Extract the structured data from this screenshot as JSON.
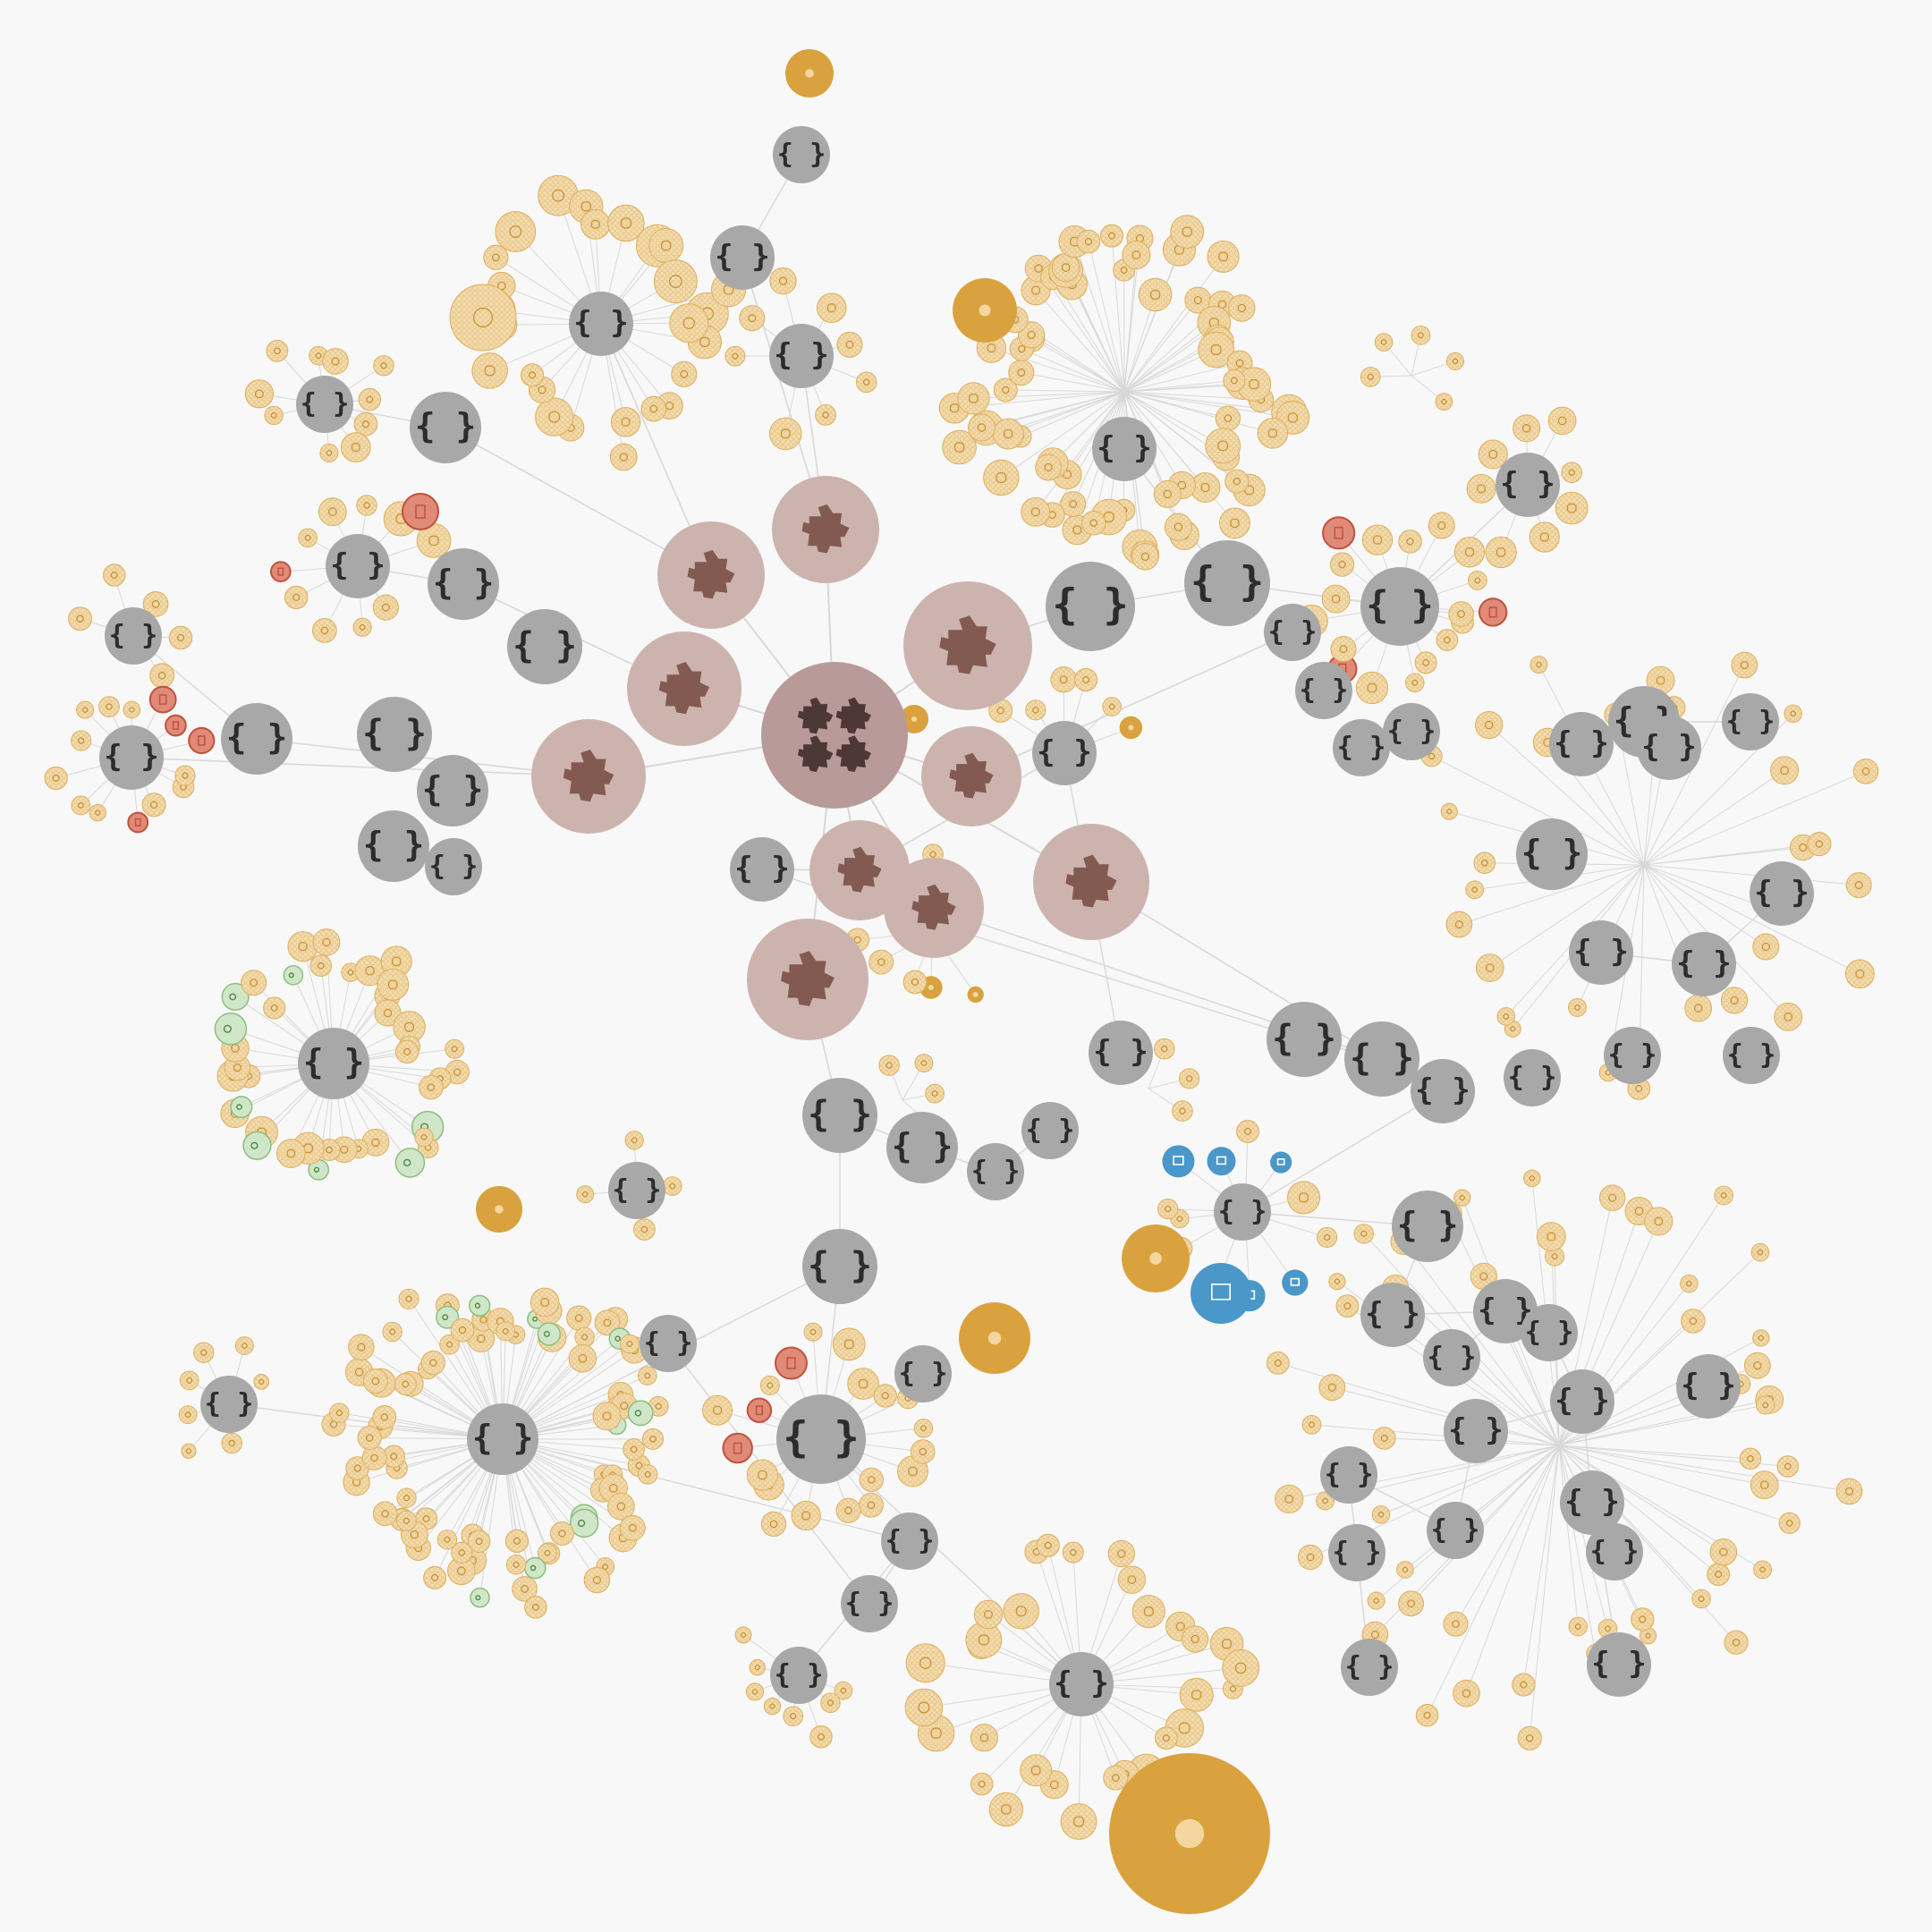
{
  "graph": {
    "kind": "module dependency graph",
    "background": "#f8f8f8",
    "colors": {
      "root_fill": "#b89a98",
      "root_icon": "#4e3836",
      "package_fill": "#cdb3ae",
      "package_icon": "#825a52",
      "module_fill": "#a8a8a8",
      "module_icon": "#2c2c2c",
      "file_fill": "#f0d6a6",
      "file_stroke": "#ddaf5c",
      "file_selected_fill": "#d9a23e",
      "test_fill": "#e08a78",
      "test_stroke": "#c0523e",
      "config_fill": "#cfe6c8",
      "config_stroke": "#8cbf7e",
      "asset_fill": "#4a97c9",
      "asset_light": "#b9d8ee",
      "edge": "#d8d8d8",
      "edge_highlight": "#a8dccd"
    },
    "icons": {
      "root": "puzzle-cluster-icon",
      "package": "puzzle-icon",
      "module": "curly-braces-icon",
      "file": "source-file-icon",
      "test": "test-file-icon",
      "config": "key-config-icon",
      "asset": "image-asset-icon"
    },
    "glyphs": {
      "module": "{ }"
    },
    "node_counts": {
      "root": 1,
      "packages": 11,
      "modules": 64
    }
  }
}
